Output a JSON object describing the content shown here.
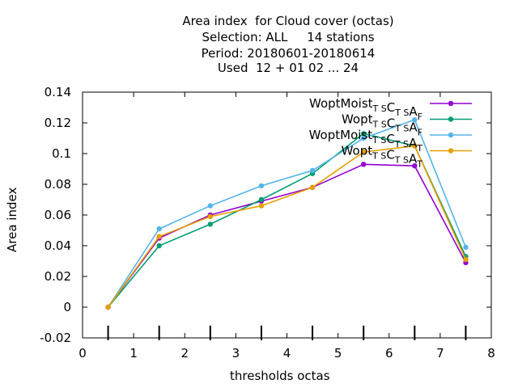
{
  "title_lines": [
    "Area index  for Cloud cover (octas)",
    "Selection: ALL     14 stations",
    "Period: 20180601-20180614",
    "Used  12 + 01 02 ... 24"
  ],
  "chart_data": {
    "type": "line",
    "title": "Area index  for Cloud cover (octas)",
    "xlabel": "thresholds octas",
    "ylabel": "Area index",
    "xlim": [
      0,
      8
    ],
    "ylim": [
      -0.02,
      0.14
    ],
    "xticks": [
      "0",
      "1",
      "2",
      "3",
      "4",
      "5",
      "6",
      "7",
      "8"
    ],
    "yticks": [
      "-0.02",
      "0",
      "0.02",
      "0.04",
      "0.06",
      "0.08",
      "0.1",
      "0.12",
      "0.14"
    ],
    "x": [
      0.5,
      1.5,
      2.5,
      3.5,
      4.5,
      5.5,
      6.5,
      7.5
    ],
    "legend_position": "top-right",
    "grid": false,
    "series": [
      {
        "name": "WoptMoist_TSC_TSA_F",
        "label_main": "WoptMoist",
        "sub1": "T S",
        "c": "C",
        "sub2": "T S",
        "a": "A",
        "sub3": "F",
        "color": "#9400d3",
        "values": [
          0.0,
          0.045,
          0.06,
          0.069,
          0.078,
          0.093,
          0.092,
          0.029
        ]
      },
      {
        "name": "Wopt_TSC_TSA_F",
        "label_main": "Wopt",
        "sub1": "T S",
        "c": "C",
        "sub2": "T S",
        "a": "A",
        "sub3": "F",
        "color": "#009e73",
        "values": [
          0.0,
          0.04,
          0.054,
          0.07,
          0.087,
          0.113,
          0.105,
          0.033
        ]
      },
      {
        "name": "WoptMoist_TSC_TSA_T",
        "label_main": "WoptMoist",
        "sub1": "T S",
        "c": "C",
        "sub2": "T S",
        "a": "A",
        "sub3": "T",
        "color": "#56b4e9",
        "values": [
          0.0,
          0.051,
          0.066,
          0.079,
          0.089,
          0.11,
          0.122,
          0.039
        ]
      },
      {
        "name": "Wopt_TSC_TSA_T",
        "label_main": "Wopt",
        "sub1": "T S",
        "c": "C",
        "sub2": "T S",
        "a": "A",
        "sub3": "T",
        "color": "#e69f00",
        "values": [
          0.0,
          0.046,
          0.059,
          0.066,
          0.078,
          0.101,
          0.105,
          0.031
        ]
      }
    ],
    "threshold_ticks_x": [
      0.5,
      1.5,
      2.5,
      3.5,
      4.5,
      5.5,
      6.5,
      7.5
    ]
  }
}
